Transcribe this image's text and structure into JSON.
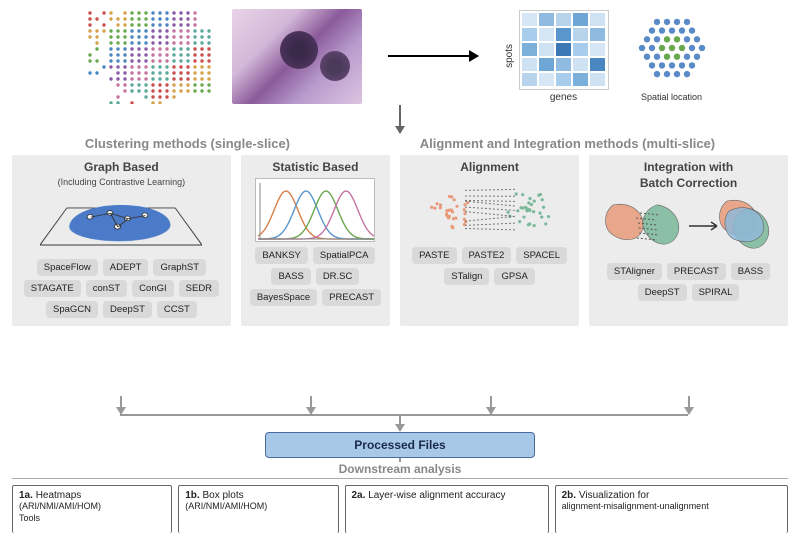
{
  "top": {
    "heatmap_ylabel": "spots",
    "heatmap_xlabel": "genes",
    "spatial_label": "Spatial location",
    "heatmap_colors": [
      "#d6e6f5",
      "#8fbbe0",
      "#b8d4ec",
      "#6ea6d6",
      "#cfe2f3",
      "#a8cceb",
      "#d6e6f5",
      "#5a96cd",
      "#b8d4ec",
      "#8fbbe0",
      "#7ab0da",
      "#cfe2f3",
      "#3c78b4",
      "#a8cceb",
      "#d6e6f5",
      "#cfe2f3",
      "#6ea6d6",
      "#8fbbe0",
      "#cfe2f3",
      "#4a86c0",
      "#b8d4ec",
      "#d6e6f5",
      "#a8cceb",
      "#7ab0da",
      "#cfe2f3"
    ],
    "spot_colors": [
      "#c94f4f",
      "#d6a24a",
      "#6aa84f",
      "#4a86c0",
      "#8a5aa8",
      "#c574a0",
      "#5aa89a"
    ],
    "hex_colors": {
      "center": "#6aa84f",
      "outer": "#5a8ac8"
    }
  },
  "sections": {
    "left_title": "Clustering methods (single-slice)",
    "right_title": "Alignment and Integration methods (multi-slice)"
  },
  "panels": {
    "graph": {
      "title": "Graph Based",
      "subtitle": "(Including Contrastive Learning)",
      "pills": [
        "SpaceFlow",
        "ADEPT",
        "GraphST",
        "STAGATE",
        "conST",
        "ConGI",
        "SEDR",
        "SpaGCN",
        "DeepST",
        "CCST"
      ],
      "blob_color": "#4a7ac8"
    },
    "stat": {
      "title": "Statistic Based",
      "pills": [
        "BANKSY",
        "SpatialPCA",
        "BASS",
        "DR.SC",
        "BayesSpace",
        "PRECAST"
      ],
      "curve_colors": [
        "#d6804a",
        "#5a96cd",
        "#6aa84f",
        "#c574a0"
      ]
    },
    "align": {
      "title": "Alignment",
      "pills": [
        "PASTE",
        "PASTE2",
        "SPACEL",
        "STalign",
        "GPSA"
      ],
      "left_color": "#e89a7a",
      "right_color": "#7ab89a"
    },
    "integ": {
      "title_l1": "Integration with",
      "title_l2": "Batch Correction",
      "pills": [
        "STAligner",
        "PRECAST",
        "BASS",
        "DeepST",
        "SPIRAL"
      ],
      "colors": [
        "#e89a7a",
        "#7ab89a",
        "#8fb8d8"
      ]
    }
  },
  "processed": "Processed Files",
  "downstream_label": "Downstream analysis",
  "downstream": {
    "b1a": {
      "num": "1a.",
      "title": "Heatmaps",
      "sub": "(ARI/NMI/AMI/HOM)",
      "sub2": "Tools"
    },
    "b1b": {
      "num": "1b.",
      "title": "Box plots",
      "sub": "(ARI/NMI/AMI/HOM)"
    },
    "b2a": {
      "num": "2a.",
      "title": "Layer-wise alignment accuracy"
    },
    "b2b": {
      "num": "2b.",
      "title": "Visualization for",
      "sub": "alignment-misalignment-unalignment"
    }
  },
  "style": {
    "panel_bg": "#ececec",
    "pill_bg": "#d9d9d9",
    "section_title_color": "#888888",
    "processed_bg": "#a8c8e8",
    "processed_border": "#4a6a9a",
    "arrow_color": "#666666"
  }
}
